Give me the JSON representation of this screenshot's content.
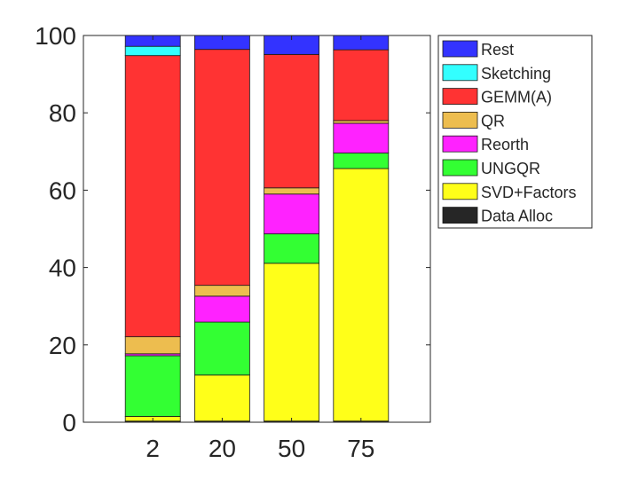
{
  "chart_data": {
    "type": "bar",
    "stacked": true,
    "categories": [
      "2",
      "20",
      "50",
      "75"
    ],
    "ylim": [
      0,
      100
    ],
    "yticks": [
      0,
      20,
      40,
      60,
      80,
      100
    ],
    "grid": false,
    "legend_position": "right",
    "series": [
      {
        "name": "Data Alloc",
        "color": "#262626",
        "values": [
          0.3,
          0.3,
          0.3,
          0.3
        ]
      },
      {
        "name": "SVD+Factors",
        "color": "#ffff19",
        "values": [
          1.2,
          11.9,
          40.8,
          65.3
        ]
      },
      {
        "name": "UNGQR",
        "color": "#33ff33",
        "values": [
          15.7,
          13.7,
          7.6,
          4.0
        ]
      },
      {
        "name": "Reorth",
        "color": "#ff22ff",
        "values": [
          0.5,
          6.7,
          10.3,
          7.7
        ]
      },
      {
        "name": "QR",
        "color": "#edbd4f",
        "values": [
          4.4,
          2.8,
          1.6,
          0.7
        ]
      },
      {
        "name": "GEMM(A)",
        "color": "#ff3333",
        "values": [
          72.7,
          61.0,
          34.5,
          18.3
        ]
      },
      {
        "name": "Sketching",
        "color": "#33ffff",
        "values": [
          2.4,
          0.0,
          0.0,
          0.0
        ]
      },
      {
        "name": "Rest",
        "color": "#3333ff",
        "values": [
          2.8,
          3.6,
          4.9,
          3.7
        ]
      }
    ],
    "legend_order": [
      "Rest",
      "Sketching",
      "GEMM(A)",
      "QR",
      "Reorth",
      "UNGQR",
      "SVD+Factors",
      "Data Alloc"
    ]
  }
}
